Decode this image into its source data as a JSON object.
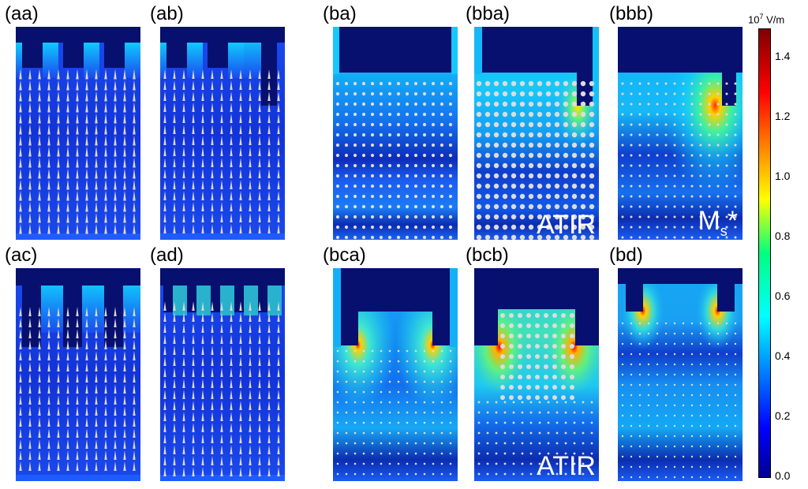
{
  "panels": [
    {
      "id": "aa",
      "label": "(aa)",
      "overlay": ""
    },
    {
      "id": "ab",
      "label": "(ab)",
      "overlay": ""
    },
    {
      "id": "ba",
      "label": "(ba)",
      "overlay": ""
    },
    {
      "id": "bba",
      "label": "(bba)",
      "overlay": "ATIR"
    },
    {
      "id": "bbb",
      "label": "(bbb)",
      "overlay": "Ms*"
    },
    {
      "id": "ac",
      "label": "(ac)",
      "overlay": ""
    },
    {
      "id": "ad",
      "label": "(ad)",
      "overlay": ""
    },
    {
      "id": "bca",
      "label": "(bca)",
      "overlay": ""
    },
    {
      "id": "bcb",
      "label": "(bcb)",
      "overlay": "ATIR"
    },
    {
      "id": "bd",
      "label": "(bd)",
      "overlay": ""
    }
  ],
  "colorbar": {
    "unit_prefix": "10",
    "unit_exp": "7",
    "unit_suffix": " V/m",
    "ticks": [
      "1.4",
      "1.2",
      "1.0",
      "0.8",
      "0.6",
      "0.4",
      "0.2",
      "0.0"
    ]
  },
  "overlays": {
    "atir": "ATIR",
    "ms_main": "M",
    "ms_sub": "s",
    "ms_star": "*"
  }
}
